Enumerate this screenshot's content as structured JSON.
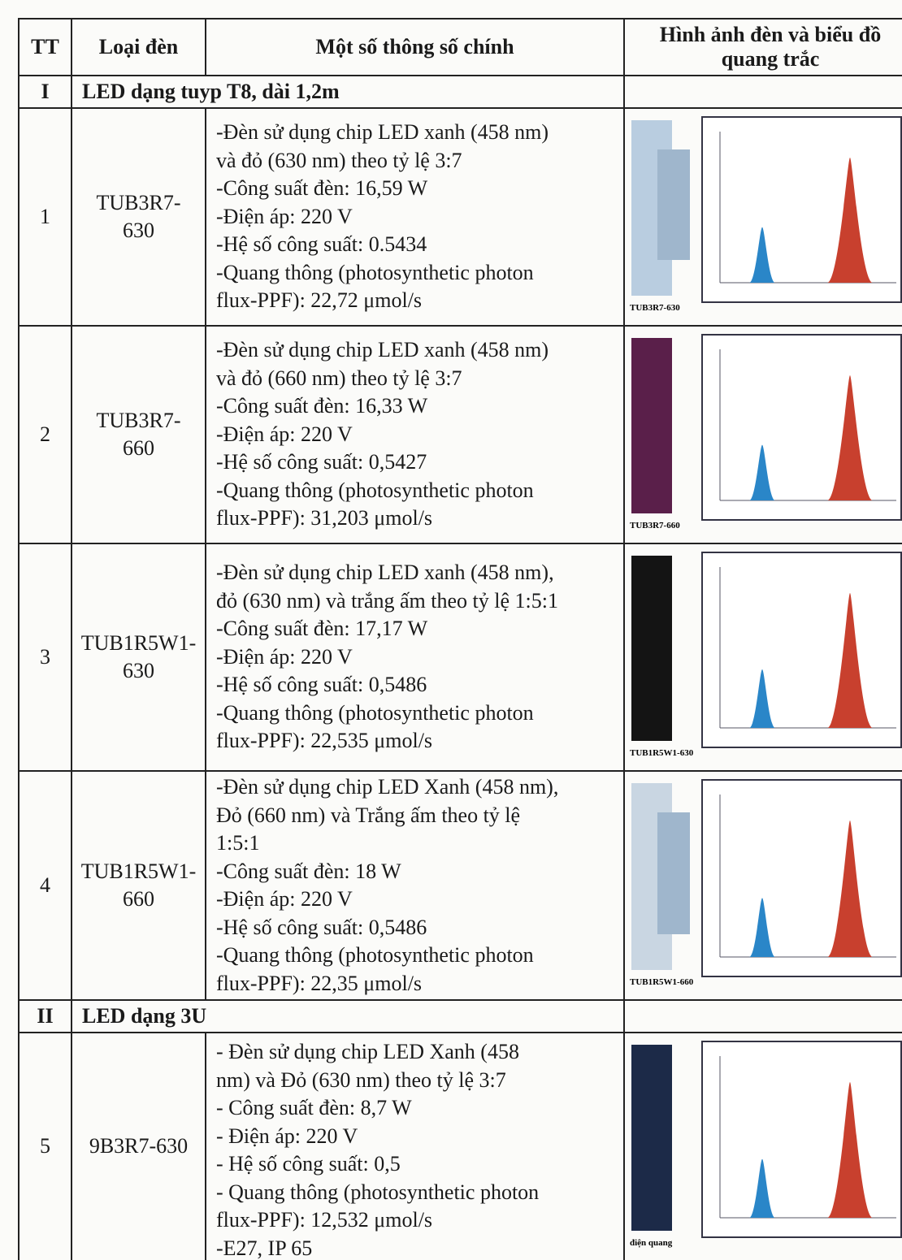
{
  "header": {
    "tt": "TT",
    "type": "Loại đèn",
    "params": "Một số thông số chính",
    "image": [
      "Hình ảnh đèn và biểu đồ",
      "quang trắc"
    ]
  },
  "table": {
    "rows": [
      {
        "tt": "I",
        "label": "LED dạng tuyp T8, dài 1,2m"
      },
      {
        "tt": "1",
        "type": [
          "TUB3R7-",
          "630"
        ],
        "params": [
          "-Đèn sử dụng chip LED xanh (458 nm)",
          "và đỏ (630 nm) theo tỷ lệ 3:7",
          "-Công suất đèn: 16,59 W",
          "-Điện áp: 220 V",
          "-Hệ số công suất: 0.5434",
          "-Quang thông  (photosynthetic photon",
          "flux-PPF): 22,72 μmol/s"
        ],
        "caption": "TUB3R7-630"
      },
      {
        "tt": "2",
        "type": [
          "TUB3R7-",
          "660"
        ],
        "params": [
          "-Đèn sử dụng chip LED xanh (458 nm)",
          "và đỏ (660 nm) theo tỷ lệ 3:7",
          "-Công suất đèn: 16,33 W",
          "-Điện áp: 220 V",
          "-Hệ số công suất: 0,5427",
          "-Quang thông (photosynthetic photon",
          "flux-PPF): 31,203 μmol/s"
        ],
        "caption": "TUB3R7-660"
      },
      {
        "tt": "3",
        "type": [
          "TUB1R5W1-",
          "630"
        ],
        "params": [
          "-Đèn sử dụng chip LED xanh (458 nm),",
          "đỏ (630 nm) và trắng ấm theo tỷ lệ 1:5:1",
          "-Công suất đèn: 17,17 W",
          "-Điện áp: 220 V",
          "-Hệ số công suất: 0,5486",
          "-Quang thông (photosynthetic photon",
          "flux-PPF): 22,535 μmol/s"
        ],
        "caption": "TUB1R5W1-630"
      },
      {
        "tt": "4",
        "type": [
          "TUB1R5W1-",
          "660"
        ],
        "params": [
          "-Đèn sử dụng chip LED Xanh (458 nm),",
          "Đỏ (660 nm) và Trắng ấm theo tỷ lệ",
          "1:5:1",
          "-Công suất đèn: 18 W",
          "-Điện áp: 220 V",
          "-Hệ số công suất: 0,5486",
          "-Quang thông (photosynthetic photon",
          "flux-PPF): 22,35 μmol/s"
        ],
        "caption": "TUB1R5W1-660"
      },
      {
        "tt": "II",
        "label": "LED dạng 3U"
      },
      {
        "tt": "5",
        "type": [
          "9B3R7-630"
        ],
        "params": [
          "- Đèn sử dụng chip LED Xanh (458",
          "nm) và Đỏ (630 nm) theo tỷ lệ 3:7",
          "- Công suất đèn: 8,7 W",
          "- Điện áp: 220 V",
          "- Hệ số công suất: 0,5",
          "- Quang thông (photosynthetic photon",
          "flux-PPF): 12,532 μmol/s",
          "-E27, IP 65"
        ],
        "caption": "điện quang"
      }
    ]
  }
}
